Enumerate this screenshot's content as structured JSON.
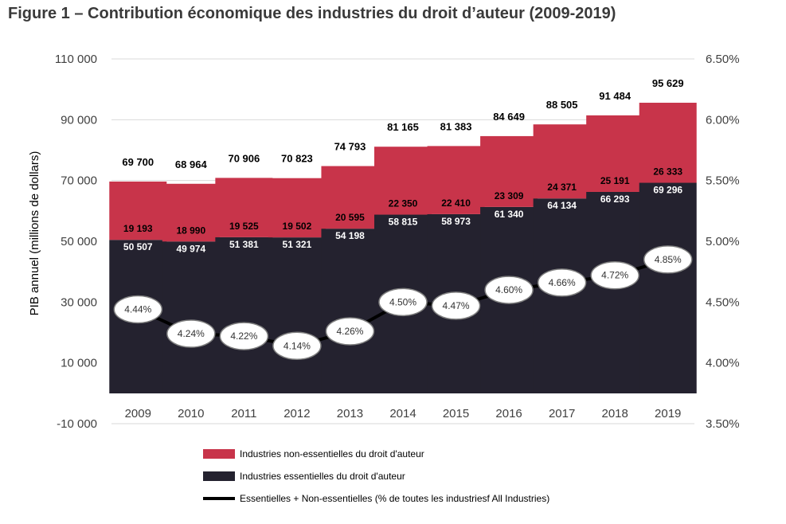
{
  "title": "Figure 1 – Contribution économique des industries du droit d’auteur (2009-2019)",
  "chart_data": {
    "type": "bar",
    "stacked": true,
    "categories": [
      "2009",
      "2010",
      "2011",
      "2012",
      "2013",
      "2014",
      "2015",
      "2016",
      "2017",
      "2018",
      "2019"
    ],
    "ylabel": "PIB annuel (millions de dollars)",
    "ylim": [
      -10000,
      110000
    ],
    "yticks": [
      "-10 000",
      "10 000",
      "30 000",
      "50 000",
      "70 000",
      "90 000",
      "110 000"
    ],
    "ytick_values": [
      -10000,
      10000,
      30000,
      50000,
      70000,
      90000,
      110000
    ],
    "y2lim": [
      3.5,
      6.5
    ],
    "y2ticks": [
      "3.50%",
      "4.00%",
      "4.50%",
      "5.00%",
      "5.50%",
      "6.00%",
      "6.50%"
    ],
    "y2tick_values": [
      3.5,
      4.0,
      4.5,
      5.0,
      5.5,
      6.0,
      6.5
    ],
    "grid": true,
    "legend_position": "bottom",
    "series": [
      {
        "name": "Industries essentielles du droit d'auteur",
        "kind": "bar",
        "color": "#24222f",
        "values": [
          50507,
          49974,
          51381,
          51321,
          54198,
          58815,
          58973,
          61340,
          64134,
          66293,
          69296
        ],
        "labels": [
          "50 507",
          "49 974",
          "51 381",
          "51 321",
          "54 198",
          "58 815",
          "58 973",
          "61 340",
          "64 134",
          "66 293",
          "69 296"
        ]
      },
      {
        "name": "Industries non-essentielles du droit d'auteur",
        "kind": "bar",
        "color": "#c8344a",
        "values": [
          19193,
          18990,
          19525,
          19502,
          20595,
          22350,
          22410,
          23309,
          24371,
          25191,
          26333
        ],
        "labels": [
          "19 193",
          "18 990",
          "19 525",
          "19 502",
          "20 595",
          "22 350",
          "22 410",
          "23 309",
          "24 371",
          "25 191",
          "26 333"
        ]
      },
      {
        "name": "Essentielles + Non-essentielles (% de toutes les industriesf All Industries)",
        "kind": "line",
        "axis": "right",
        "color": "#000000",
        "values": [
          4.44,
          4.24,
          4.22,
          4.14,
          4.26,
          4.5,
          4.47,
          4.6,
          4.66,
          4.72,
          4.85
        ],
        "labels": [
          "4.44%",
          "4.24%",
          "4.22%",
          "4.14%",
          "4.26%",
          "4.50%",
          "4.47%",
          "4.60%",
          "4.66%",
          "4.72%",
          "4.85%"
        ]
      }
    ],
    "totals": [
      69700,
      68964,
      70906,
      70823,
      74793,
      81165,
      81383,
      84649,
      88505,
      91484,
      95629
    ],
    "total_labels": [
      "69 700",
      "68 964",
      "70 906",
      "70 823",
      "74 793",
      "81 165",
      "81 383",
      "84 649",
      "88 505",
      "91 484",
      "95 629"
    ],
    "legend_order": [
      1,
      0,
      2
    ]
  }
}
